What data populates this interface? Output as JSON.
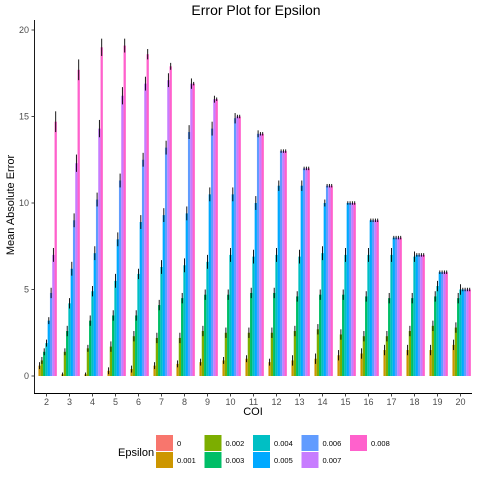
{
  "chart_data": {
    "type": "bar",
    "title": "Error Plot for Epsilon",
    "xlabel": "COI",
    "ylabel": "Mean Absolute Error",
    "categories": [
      "2",
      "3",
      "4",
      "5",
      "6",
      "7",
      "8",
      "9",
      "10",
      "11",
      "12",
      "13",
      "14",
      "15",
      "16",
      "17",
      "18",
      "19",
      "20"
    ],
    "ylim": [
      0,
      20.5
    ],
    "yticks": [
      0,
      5,
      10,
      15,
      20
    ],
    "grid": false,
    "legend": {
      "title": "Epsilon",
      "position": "bottom"
    },
    "series": [
      {
        "name": "0",
        "color": "#F8766D",
        "values": [
          0,
          0,
          0,
          0,
          0,
          0,
          0,
          0,
          0,
          0,
          0,
          0,
          0,
          0,
          0,
          0,
          0,
          0,
          0
        ]
      },
      {
        "name": "0.001",
        "color": "#CD9600",
        "values": [
          0.6,
          0.1,
          0.1,
          0.3,
          0.4,
          0.6,
          0.7,
          0.8,
          0.9,
          1.0,
          0.8,
          0.9,
          1.0,
          1.2,
          1.3,
          1.5,
          1.5,
          1.5,
          1.8
        ]
      },
      {
        "name": "0.002",
        "color": "#7CAE00",
        "values": [
          0.9,
          1.4,
          1.6,
          1.7,
          2.3,
          2.2,
          2.2,
          2.6,
          2.5,
          2.5,
          2.5,
          2.6,
          2.7,
          2.4,
          2.3,
          2.3,
          2.6,
          2.9,
          2.8
        ]
      },
      {
        "name": "0.003",
        "color": "#00BE67",
        "values": [
          1.4,
          2.6,
          3.2,
          3.5,
          3.5,
          4.1,
          4.5,
          4.7,
          4.7,
          4.8,
          4.8,
          4.6,
          4.7,
          4.7,
          4.6,
          4.5,
          4.5,
          4.6,
          4.5
        ]
      },
      {
        "name": "0.004",
        "color": "#00BFC4",
        "values": [
          1.9,
          4.2,
          4.9,
          5.5,
          5.9,
          6.3,
          6.4,
          6.6,
          7.0,
          6.9,
          7.0,
          6.9,
          7.1,
          7.0,
          7.0,
          7.0,
          6.9,
          5.2,
          5.0
        ]
      },
      {
        "name": "0.005",
        "color": "#00A9FF",
        "values": [
          3.2,
          6.2,
          7.1,
          7.9,
          8.9,
          9.3,
          9.4,
          10.5,
          10.5,
          10.0,
          11.0,
          11.0,
          10.0,
          10.0,
          9.0,
          8.0,
          7.0,
          6.0,
          5.0
        ]
      },
      {
        "name": "0.006",
        "color": "#619CFF",
        "values": [
          4.8,
          9.0,
          10.2,
          11.3,
          12.5,
          13.2,
          14.1,
          14.3,
          14.9,
          14.0,
          13.0,
          12.0,
          11.0,
          10.0,
          9.0,
          8.0,
          7.0,
          6.0,
          5.0
        ]
      },
      {
        "name": "0.007",
        "color": "#C77CFF",
        "values": [
          7.0,
          12.3,
          14.3,
          16.2,
          16.9,
          17.1,
          16.9,
          16.0,
          15.0,
          14.0,
          13.0,
          12.0,
          11.0,
          10.0,
          9.0,
          8.0,
          7.0,
          6.0,
          5.0
        ]
      },
      {
        "name": "0.008",
        "color": "#FF61CC",
        "values": [
          14.7,
          17.7,
          19.0,
          19.1,
          18.6,
          17.9,
          16.9,
          16.0,
          15.0,
          14.0,
          13.0,
          12.0,
          11.0,
          10.0,
          9.0,
          8.0,
          7.0,
          6.0,
          5.0
        ]
      }
    ],
    "error_half": [
      [
        0,
        0,
        0,
        0,
        0,
        0,
        0,
        0,
        0,
        0,
        0,
        0,
        0,
        0,
        0,
        0,
        0,
        0,
        0
      ],
      [
        0.2,
        0.1,
        0.1,
        0.2,
        0.2,
        0.2,
        0.2,
        0.2,
        0.2,
        0.2,
        0.2,
        0.3,
        0.3,
        0.3,
        0.3,
        0.3,
        0.3,
        0.3,
        0.3
      ],
      [
        0.2,
        0.2,
        0.2,
        0.3,
        0.3,
        0.3,
        0.3,
        0.3,
        0.3,
        0.3,
        0.3,
        0.3,
        0.3,
        0.3,
        0.3,
        0.3,
        0.3,
        0.3,
        0.3
      ],
      [
        0.2,
        0.3,
        0.3,
        0.3,
        0.3,
        0.3,
        0.3,
        0.3,
        0.3,
        0.3,
        0.3,
        0.3,
        0.3,
        0.3,
        0.3,
        0.3,
        0.3,
        0.3,
        0.3
      ],
      [
        0.2,
        0.3,
        0.3,
        0.4,
        0.3,
        0.4,
        0.4,
        0.4,
        0.4,
        0.4,
        0.4,
        0.4,
        0.4,
        0.4,
        0.4,
        0.4,
        0.3,
        0.3,
        0.3
      ],
      [
        0.2,
        0.4,
        0.4,
        0.4,
        0.4,
        0.4,
        0.4,
        0.4,
        0.4,
        0.4,
        0.3,
        0.3,
        0.2,
        0.1,
        0.1,
        0.1,
        0.1,
        0.1,
        0.1
      ],
      [
        0.3,
        0.4,
        0.4,
        0.4,
        0.4,
        0.4,
        0.4,
        0.4,
        0.3,
        0.2,
        0.1,
        0.1,
        0.1,
        0.1,
        0.1,
        0.1,
        0.1,
        0.1,
        0.1
      ],
      [
        0.4,
        0.5,
        0.5,
        0.5,
        0.4,
        0.4,
        0.3,
        0.2,
        0.1,
        0.1,
        0.1,
        0.1,
        0.1,
        0.1,
        0.1,
        0.1,
        0.1,
        0.1,
        0.1
      ],
      [
        0.6,
        0.6,
        0.5,
        0.4,
        0.3,
        0.2,
        0.1,
        0.1,
        0.1,
        0.1,
        0.1,
        0.1,
        0.1,
        0.1,
        0.1,
        0.1,
        0.1,
        0.1,
        0.1
      ]
    ]
  }
}
